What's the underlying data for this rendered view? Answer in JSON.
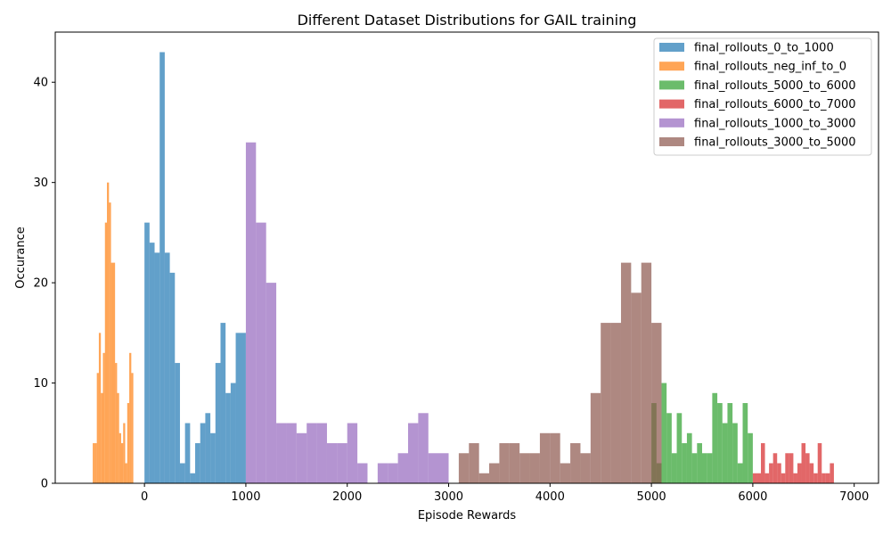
{
  "chart_data": {
    "type": "bar",
    "title": "Different Dataset Distributions for GAIL training",
    "xlabel": "Episode Rewards",
    "ylabel": "Occurance",
    "xlim": [
      -880,
      7240
    ],
    "ylim": [
      0,
      45
    ],
    "xticks": [
      0,
      1000,
      2000,
      3000,
      4000,
      5000,
      6000,
      7000
    ],
    "yticks": [
      0,
      10,
      20,
      30,
      40
    ],
    "legend_position": "top-right",
    "grid": false,
    "series": [
      {
        "name": "final_rollouts_0_to_1000",
        "color": "#1f77b4",
        "bins": [
          [
            0,
            50,
            26
          ],
          [
            50,
            100,
            24
          ],
          [
            100,
            150,
            23
          ],
          [
            150,
            200,
            43
          ],
          [
            200,
            250,
            23
          ],
          [
            250,
            300,
            21
          ],
          [
            300,
            350,
            12
          ],
          [
            350,
            400,
            2
          ],
          [
            400,
            450,
            6
          ],
          [
            450,
            500,
            1
          ],
          [
            500,
            550,
            4
          ],
          [
            550,
            600,
            6
          ],
          [
            600,
            650,
            7
          ],
          [
            650,
            700,
            5
          ],
          [
            700,
            750,
            12
          ],
          [
            750,
            800,
            16
          ],
          [
            800,
            850,
            9
          ],
          [
            850,
            900,
            10
          ],
          [
            900,
            1000,
            15
          ]
        ]
      },
      {
        "name": "final_rollouts_neg_inf_to_0",
        "color": "#ff7f0e",
        "bins": [
          [
            -510,
            -490,
            4
          ],
          [
            -490,
            -470,
            4
          ],
          [
            -470,
            -450,
            11
          ],
          [
            -450,
            -430,
            15
          ],
          [
            -430,
            -410,
            9
          ],
          [
            -410,
            -390,
            13
          ],
          [
            -390,
            -370,
            26
          ],
          [
            -370,
            -350,
            30
          ],
          [
            -350,
            -330,
            28
          ],
          [
            -330,
            -290,
            22
          ],
          [
            -290,
            -270,
            12
          ],
          [
            -270,
            -250,
            9
          ],
          [
            -250,
            -230,
            5
          ],
          [
            -230,
            -210,
            4
          ],
          [
            -210,
            -190,
            6
          ],
          [
            -190,
            -170,
            2
          ],
          [
            -170,
            -150,
            8
          ],
          [
            -150,
            -130,
            13
          ],
          [
            -130,
            -110,
            11
          ]
        ]
      },
      {
        "name": "final_rollouts_5000_to_6000",
        "color": "#2ca02c",
        "bins": [
          [
            5000,
            5050,
            8
          ],
          [
            5050,
            5100,
            2
          ],
          [
            5100,
            5150,
            10
          ],
          [
            5150,
            5200,
            7
          ],
          [
            5200,
            5250,
            3
          ],
          [
            5250,
            5300,
            7
          ],
          [
            5300,
            5350,
            4
          ],
          [
            5350,
            5400,
            5
          ],
          [
            5400,
            5450,
            3
          ],
          [
            5450,
            5500,
            4
          ],
          [
            5500,
            5550,
            3
          ],
          [
            5550,
            5600,
            3
          ],
          [
            5600,
            5650,
            9
          ],
          [
            5650,
            5700,
            8
          ],
          [
            5700,
            5750,
            6
          ],
          [
            5750,
            5800,
            8
          ],
          [
            5800,
            5850,
            6
          ],
          [
            5850,
            5900,
            2
          ],
          [
            5900,
            5950,
            8
          ],
          [
            5950,
            6000,
            5
          ]
        ]
      },
      {
        "name": "final_rollouts_6000_to_7000",
        "color": "#d62728",
        "bins": [
          [
            6000,
            6040,
            1
          ],
          [
            6040,
            6080,
            1
          ],
          [
            6080,
            6120,
            4
          ],
          [
            6120,
            6160,
            1
          ],
          [
            6160,
            6200,
            2
          ],
          [
            6200,
            6240,
            3
          ],
          [
            6240,
            6280,
            2
          ],
          [
            6280,
            6320,
            1
          ],
          [
            6320,
            6360,
            3
          ],
          [
            6360,
            6400,
            3
          ],
          [
            6400,
            6440,
            1
          ],
          [
            6440,
            6480,
            2
          ],
          [
            6480,
            6520,
            4
          ],
          [
            6520,
            6560,
            3
          ],
          [
            6560,
            6600,
            2
          ],
          [
            6600,
            6640,
            1
          ],
          [
            6640,
            6680,
            4
          ],
          [
            6680,
            6720,
            1
          ],
          [
            6720,
            6760,
            1
          ],
          [
            6760,
            6800,
            2
          ]
        ]
      },
      {
        "name": "final_rollouts_1000_to_3000",
        "color": "#9467bd",
        "bins": [
          [
            1000,
            1100,
            34
          ],
          [
            1100,
            1200,
            26
          ],
          [
            1200,
            1300,
            20
          ],
          [
            1300,
            1400,
            6
          ],
          [
            1400,
            1500,
            6
          ],
          [
            1500,
            1600,
            5
          ],
          [
            1600,
            1700,
            6
          ],
          [
            1700,
            1800,
            6
          ],
          [
            1800,
            1900,
            4
          ],
          [
            1900,
            2000,
            4
          ],
          [
            2000,
            2100,
            6
          ],
          [
            2100,
            2200,
            2
          ],
          [
            2200,
            2300,
            0
          ],
          [
            2300,
            2400,
            2
          ],
          [
            2400,
            2500,
            2
          ],
          [
            2500,
            2600,
            3
          ],
          [
            2600,
            2700,
            6
          ],
          [
            2700,
            2800,
            7
          ],
          [
            2800,
            3000,
            3
          ]
        ]
      },
      {
        "name": "final_rollouts_3000_to_5000",
        "color": "#8c564b",
        "bins": [
          [
            3100,
            3200,
            3
          ],
          [
            3200,
            3300,
            4
          ],
          [
            3300,
            3400,
            1
          ],
          [
            3400,
            3500,
            2
          ],
          [
            3500,
            3600,
            4
          ],
          [
            3600,
            3700,
            4
          ],
          [
            3700,
            3800,
            3
          ],
          [
            3800,
            3900,
            3
          ],
          [
            3900,
            4000,
            5
          ],
          [
            4000,
            4100,
            5
          ],
          [
            4100,
            4200,
            2
          ],
          [
            4200,
            4300,
            4
          ],
          [
            4300,
            4400,
            3
          ],
          [
            4400,
            4500,
            9
          ],
          [
            4500,
            4600,
            16
          ],
          [
            4600,
            4700,
            16
          ],
          [
            4700,
            4800,
            22
          ],
          [
            4800,
            4900,
            19
          ],
          [
            4900,
            5000,
            22
          ],
          [
            5000,
            5100,
            16
          ]
        ]
      }
    ]
  }
}
